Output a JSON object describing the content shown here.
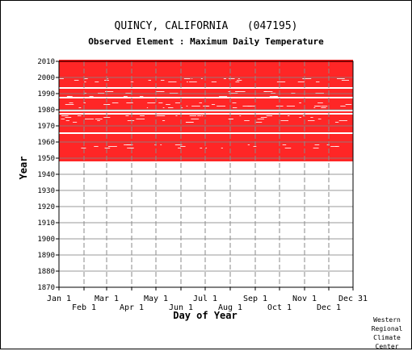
{
  "chart_data": {
    "type": "heatmap",
    "title": "QUINCY, CALIFORNIA   (047195)",
    "subtitle": "Observed Element : Maximum Daily Temperature",
    "xlabel": "Day of Year",
    "ylabel": "Year",
    "x_ticks_top_row": [
      "Jan 1",
      "Mar 1",
      "May 1",
      "Jul 1",
      "Sep 1",
      "Nov 1",
      "Dec 31"
    ],
    "x_ticks_bottom_row": [
      "Feb 1",
      "Apr 1",
      "Jun 1",
      "Aug 1",
      "Oct 1",
      "Dec 1"
    ],
    "x_tick_days": {
      "Jan 1": 1,
      "Feb 1": 32,
      "Mar 1": 60,
      "Apr 1": 91,
      "May 1": 121,
      "Jun 1": 152,
      "Jul 1": 182,
      "Aug 1": 213,
      "Sep 1": 244,
      "Oct 1": 274,
      "Nov 1": 305,
      "Dec 1": 335,
      "Dec 31": 365
    },
    "xlim": [
      1,
      365
    ],
    "ylim": [
      1870,
      2010
    ],
    "y_ticks": [
      2010,
      2000,
      1990,
      1980,
      1970,
      1960,
      1950,
      1940,
      1930,
      1920,
      1910,
      1900,
      1890,
      1880,
      1870
    ],
    "data_color": "#ff0000",
    "data_coverage": {
      "first_year": 1948,
      "last_year": 2010,
      "gap_years": [
        1993,
        1987,
        1979,
        1977,
        1965
      ],
      "partial_years": [
        1999,
        1998,
        1997,
        1991,
        1990,
        1988,
        1984,
        1983,
        1982,
        1981,
        1976,
        1975,
        1974,
        1973,
        1972,
        1958,
        1957,
        1956
      ]
    },
    "grid": true
  },
  "credit": {
    "line1": "Western",
    "line2": "Regional",
    "line3": "Climate",
    "line4": "Center"
  }
}
